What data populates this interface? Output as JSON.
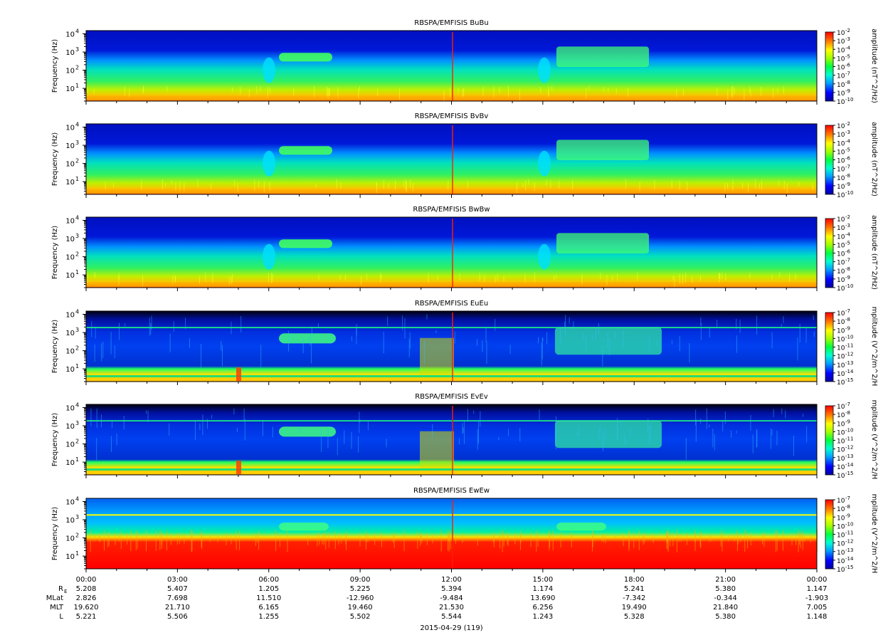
{
  "chart_data": {
    "type": "heatmap",
    "panel_titles": [
      "RBSPA/EMFISIS  BuBu",
      "RBSPA/EMFISIS  BvBv",
      "RBSPA/EMFISIS  BwBw",
      "RBSPA/EMFISIS  EuEu",
      "RBSPA/EMFISIS  EvEv",
      "RBSPA/EMFISIS  EwEw"
    ],
    "ylabel": "Frequency (Hz)",
    "y_scale": "log",
    "ylim": [
      2,
      15000
    ],
    "y_ticks": [
      {
        "base": "10",
        "exp": "1"
      },
      {
        "base": "10",
        "exp": "2"
      },
      {
        "base": "10",
        "exp": "3"
      },
      {
        "base": "10",
        "exp": "4"
      }
    ],
    "x_tick_labels": [
      "00:00",
      "03:00",
      "06:00",
      "09:00",
      "12:00",
      "15:00",
      "18:00",
      "21:00",
      "00:00"
    ],
    "x_minor_per_major": 3,
    "colorbars": [
      {
        "label": "amplitude (nT^2/Hz)",
        "exponents": [
          "-2",
          "-3",
          "-4",
          "-5",
          "-6",
          "-7",
          "-8",
          "-9",
          "-10"
        ],
        "range": [
          -10,
          -2
        ]
      },
      {
        "label": "amplitude (nT^2/Hz)",
        "exponents": [
          "-2",
          "-3",
          "-4",
          "-5",
          "-6",
          "-7",
          "-8",
          "-9",
          "-10"
        ],
        "range": [
          -10,
          -2
        ]
      },
      {
        "label": "amplitude (nT^2/Hz)",
        "exponents": [
          "-2",
          "-3",
          "-4",
          "-5",
          "-6",
          "-7",
          "-8",
          "-9",
          "-10"
        ],
        "range": [
          -10,
          -2
        ]
      },
      {
        "label": "mplitude (V^2/m^2/H",
        "exponents": [
          "-7",
          "-8",
          "-9",
          "-10",
          "-11",
          "-12",
          "-13",
          "-14",
          "-15"
        ],
        "range": [
          -15,
          -7
        ]
      },
      {
        "label": "mplitude (V^2/m^2/H",
        "exponents": [
          "-7",
          "-8",
          "-9",
          "-10",
          "-11",
          "-12",
          "-13",
          "-14",
          "-15"
        ],
        "range": [
          -15,
          -7
        ]
      },
      {
        "label": "mplitude (V^2/m^2/H",
        "exponents": [
          "-7",
          "-8",
          "-9",
          "-10",
          "-11",
          "-12",
          "-13",
          "-14",
          "-15"
        ],
        "range": [
          -15,
          -7
        ]
      }
    ],
    "ephemeris": [
      {
        "label": "R",
        "sub": "E",
        "values": [
          "5.208",
          "5.407",
          "1.205",
          "5.225",
          "5.394",
          "1.174",
          "5.241",
          "5.380",
          "1.147"
        ]
      },
      {
        "label": "MLat",
        "sub": "",
        "values": [
          "2.826",
          "7.698",
          "11.510",
          "-12.960",
          "-9.484",
          "13.690",
          "-7.342",
          "-0.344",
          "-1.903"
        ]
      },
      {
        "label": "MLT",
        "sub": "",
        "values": [
          "19.620",
          "21.710",
          "6.165",
          "19.460",
          "21.530",
          "6.256",
          "19.490",
          "21.840",
          "7.005"
        ]
      },
      {
        "label": "L",
        "sub": "",
        "values": [
          "5.221",
          "5.506",
          "1.255",
          "5.502",
          "5.544",
          "1.243",
          "5.328",
          "5.380",
          "1.148"
        ]
      }
    ],
    "date_label": "2015-04-29 (119)"
  }
}
